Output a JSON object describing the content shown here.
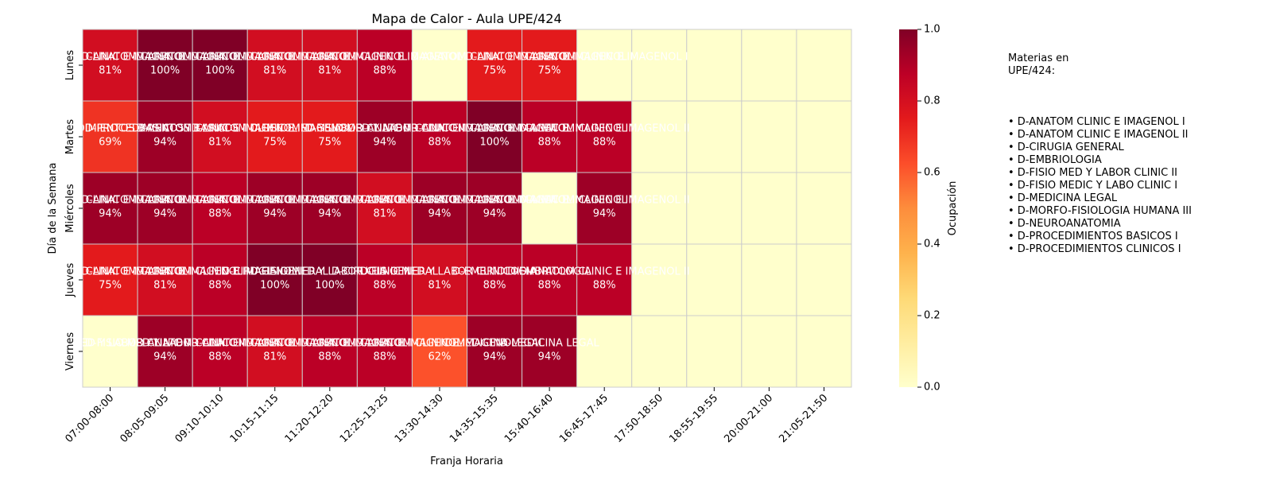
{
  "chart_data": {
    "type": "heatmap",
    "title": "Mapa de Calor - Aula UPE/424",
    "xlabel": "Franja Horaria",
    "ylabel": "Día de la Semana",
    "x_categories": [
      "07:00-08:00",
      "08:05-09:05",
      "09:10-10:10",
      "10:15-11:15",
      "11:20-12:20",
      "12:25-13:25",
      "13:30-14:30",
      "14:35-15:35",
      "15:40-16:40",
      "16:45-17:45",
      "17:50-18:50",
      "18:55-19:55",
      "20:00-21:00",
      "21:05-21:50"
    ],
    "y_categories": [
      "Lunes",
      "Martes",
      "Miércoles",
      "Jueves",
      "Viernes"
    ],
    "values": [
      [
        0.81,
        1.0,
        1.0,
        0.81,
        0.81,
        0.88,
        0.0,
        0.75,
        0.75,
        0.0,
        0.0,
        0.0,
        0.0,
        0.0
      ],
      [
        0.69,
        0.94,
        0.81,
        0.75,
        0.75,
        0.94,
        0.88,
        1.0,
        0.88,
        0.88,
        0.0,
        0.0,
        0.0,
        0.0
      ],
      [
        0.94,
        0.94,
        0.88,
        0.94,
        0.94,
        0.81,
        0.94,
        0.94,
        0.0,
        0.94,
        0.0,
        0.0,
        0.0,
        0.0
      ],
      [
        0.75,
        0.81,
        0.88,
        1.0,
        1.0,
        0.88,
        0.81,
        0.88,
        0.88,
        0.88,
        0.0,
        0.0,
        0.0,
        0.0
      ],
      [
        0.0,
        0.94,
        0.88,
        0.81,
        0.88,
        0.88,
        0.62,
        0.94,
        0.94,
        0.0,
        0.0,
        0.0,
        0.0,
        0.0
      ]
    ],
    "cell_labels": [
      [
        "81%",
        "100%",
        "100%",
        "81%",
        "81%",
        "88%",
        "",
        "75%",
        "75%",
        "",
        "",
        "",
        "",
        ""
      ],
      [
        "69%",
        "94%",
        "81%",
        "75%",
        "75%",
        "94%",
        "88%",
        "100%",
        "88%",
        "88%",
        "",
        "",
        "",
        ""
      ],
      [
        "94%",
        "94%",
        "88%",
        "94%",
        "94%",
        "81%",
        "94%",
        "94%",
        "",
        "94%",
        "",
        "",
        "",
        ""
      ],
      [
        "75%",
        "81%",
        "88%",
        "100%",
        "100%",
        "88%",
        "81%",
        "88%",
        "88%",
        "88%",
        "",
        "",
        "",
        ""
      ],
      [
        "",
        "94%",
        "88%",
        "81%",
        "88%",
        "88%",
        "62%",
        "94%",
        "94%",
        "",
        "",
        "",
        "",
        ""
      ]
    ],
    "cell_subjects": [
      [
        "D-ANATOM CLINIC E IMAGENOL I",
        "D-ANATOM CLINIC E IMAGENOL I",
        "D-ANATOM CLINIC E IMAGENOL I",
        "D-ANATOM CLINIC E IMAGENOL I",
        "D-ANATOM CLINIC E IMAGENOL I",
        "D-ANATOM CLINIC E IMAGENOL I",
        "",
        "D-ANATOM CLINIC E IMAGENOL I",
        "D-ANATOM CLINIC E IMAGENOL I",
        "D-ANATOM CLINIC E IMAGENOL I",
        "",
        "",
        "",
        ""
      ],
      [
        "D-PROCEDIMIENTOS BASICOS I",
        "D-PROCEDIMIENTOS BASICOS I",
        "D-ANATOM CLINIC E IMAGENOL I",
        "D-ANATOM CLINIC E IMAGENOL I",
        "D-FISIO MED Y LABOR CLINIC II",
        "D-FISIO MED Y LABOR CLINIC II",
        "D-ANATOM CLINIC E IMAGENOL I",
        "D-ANATOM CLINIC E IMAGENOL I",
        "D-ANATOM CLINIC E IMAGENOL I",
        "D-ANATOM CLINIC E IMAGENOL II",
        "",
        "",
        "",
        ""
      ],
      [
        "D-ANATOM CLINIC E IMAGENOL I",
        "D-ANATOM CLINIC E IMAGENOL I",
        "D-ANATOM CLINIC E IMAGENOL I",
        "D-ANATOM CLINIC E IMAGENOL I",
        "D-ANATOM CLINIC E IMAGENOL I",
        "D-ANATOM CLINIC E IMAGENOL I",
        "D-ANATOM CLINIC E IMAGENOL I",
        "D-ANATOM CLINIC E IMAGENOL I",
        "D-ANATOM CLINIC E IMAGENOL I",
        "D-ANATOM CLINIC E IMAGENOL II",
        "",
        "",
        "",
        ""
      ],
      [
        "D-ANATOM CLINIC E IMAGENOL I",
        "D-ANATOM CLINIC E IMAGENOL I",
        "D-ANATOM CLINIC E IMAGENOL I",
        "D-CIRUGIA GENERAL",
        "D-FISIO MED Y LABOR CLINIC II",
        "D-CIRUGIA GENERAL",
        "D-FISIO MED Y LABOR CLINIC II",
        "D-EMBRIOLOGIA",
        "D-EMBRIOLOGIA",
        "D-ANATOM CLINIC E IMAGENOL II",
        "",
        "",
        "",
        ""
      ],
      [
        "D-FISIO MED Y LABOR CLINIC II",
        "D-FISIO MED Y LABOR CLINIC II",
        "D-ANATOM CLINIC E IMAGENOL I",
        "D-ANATOM CLINIC E IMAGENOL I",
        "D-ANATOM CLINIC E IMAGENOL I",
        "D-ANATOM CLINIC E IMAGENOL I",
        "D-ANATOM CLINIC E IMAGENOL I",
        "D-MEDICINA LEGAL",
        "D-MEDICINA LEGAL",
        "",
        "",
        "",
        "",
        ""
      ]
    ],
    "value_range": [
      0.0,
      1.0
    ],
    "colormap": [
      "#ffffcc",
      "#ffeda0",
      "#fed976",
      "#feb24c",
      "#fd8d3c",
      "#fc4e2a",
      "#e31a1c",
      "#bd0026",
      "#800026"
    ],
    "colorbar": {
      "label": "Ocupación",
      "ticks": [
        0.0,
        0.2,
        0.4,
        0.6,
        0.8,
        1.0
      ],
      "tick_labels": [
        "0.0",
        "0.2",
        "0.4",
        "0.6",
        "0.8",
        "1.0"
      ]
    },
    "grid_color": "#cccccc"
  },
  "side_panel": {
    "heading": "Materias en\nUPE/424:",
    "items": [
      "• D-ANATOM CLINIC E IMAGENOL I",
      "• D-ANATOM CLINIC E IMAGENOL II",
      "• D-CIRUGIA GENERAL",
      "• D-EMBRIOLOGIA",
      "• D-FISIO MED Y LABOR CLINIC II",
      "• D-FISIO MEDIC Y LABO CLINIC I",
      "• D-MEDICINA LEGAL",
      "• D-MORFO-FISIOLOGIA HUMANA III",
      "• D-NEUROANATOMIA",
      "• D-PROCEDIMIENTOS BASICOS I",
      "• D-PROCEDIMIENTOS CLINICOS I"
    ]
  }
}
